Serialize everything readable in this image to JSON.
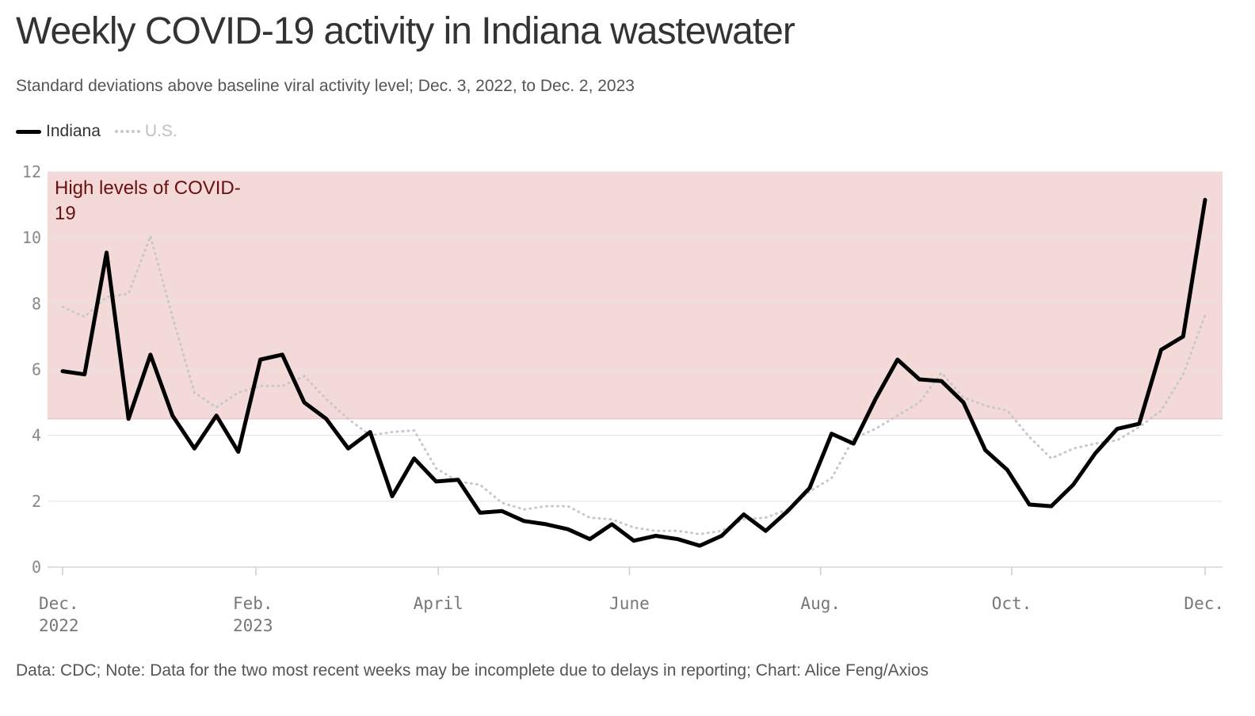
{
  "title": "Weekly COVID-19 activity in Indiana wastewater",
  "subtitle": "Standard deviations above baseline viral activity level; Dec. 3, 2022, to Dec. 2, 2023",
  "legend": {
    "indiana": "Indiana",
    "us": "U.S."
  },
  "footer": "Data: CDC; Note: Data for the two most recent weeks may be incomplete due to delays in reporting; Chart: Alice Feng/Axios",
  "colors": {
    "indiana": "#000000",
    "us": "#c8c8c8",
    "high_band": "#f3d9d7",
    "high_text": "#6b0f0f",
    "grid": "#e3e3e3"
  },
  "chart_data": {
    "type": "line",
    "ylim": [
      0,
      12
    ],
    "y_ticks": [
      "0",
      "2",
      "4",
      "6",
      "8",
      "10",
      "12"
    ],
    "x_ticks": [
      {
        "line1": "Dec.",
        "line2": "2022",
        "week": 0
      },
      {
        "line1": "Feb.",
        "line2": "2023",
        "week": 8.8
      },
      {
        "line1": "April",
        "line2": "",
        "week": 17.1
      },
      {
        "line1": "June",
        "line2": "",
        "week": 25.8
      },
      {
        "line1": "Aug.",
        "line2": "",
        "week": 34.5
      },
      {
        "line1": "Oct.",
        "line2": "",
        "week": 43.2
      },
      {
        "line1": "Dec.",
        "line2": "",
        "week": 52
      }
    ],
    "annotation": {
      "text_line1": "High levels of COVID-",
      "text_line2": "19",
      "threshold": 4.5,
      "upper": 12
    },
    "series": [
      {
        "name": "Indiana",
        "style": "solid",
        "values": [
          5.95,
          5.85,
          9.55,
          4.5,
          6.45,
          4.6,
          3.6,
          4.6,
          3.5,
          6.3,
          6.45,
          5.0,
          4.5,
          3.6,
          4.1,
          2.15,
          3.3,
          2.6,
          2.65,
          1.65,
          1.7,
          1.4,
          1.3,
          1.15,
          0.85,
          1.3,
          0.8,
          0.95,
          0.85,
          0.65,
          0.95,
          1.6,
          1.1,
          1.7,
          2.4,
          4.05,
          3.75,
          5.1,
          6.3,
          5.7,
          5.65,
          5.0,
          3.55,
          2.95,
          1.9,
          1.85,
          2.5,
          3.45,
          4.2,
          4.35,
          6.6,
          7.0,
          11.15
        ]
      },
      {
        "name": "U.S.",
        "style": "dotted",
        "values": [
          7.9,
          7.6,
          8.2,
          8.3,
          10.05,
          7.6,
          5.3,
          4.85,
          5.3,
          5.5,
          5.5,
          5.8,
          5.1,
          4.5,
          4.0,
          4.1,
          4.15,
          3.0,
          2.6,
          2.5,
          1.95,
          1.75,
          1.85,
          1.85,
          1.5,
          1.45,
          1.2,
          1.1,
          1.1,
          1.0,
          1.1,
          1.45,
          1.5,
          1.75,
          2.3,
          2.7,
          3.9,
          4.2,
          4.6,
          5.0,
          5.9,
          5.15,
          4.9,
          4.75,
          3.95,
          3.3,
          3.6,
          3.75,
          3.85,
          4.25,
          4.75,
          5.85,
          7.65
        ]
      }
    ]
  }
}
